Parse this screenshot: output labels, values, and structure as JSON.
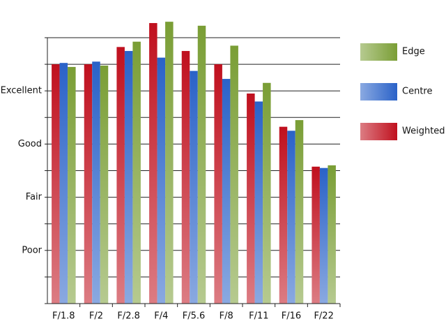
{
  "chart_data": {
    "type": "bar",
    "categories": [
      "F/1.8",
      "F/2",
      "F/2.8",
      "F/4",
      "F/5.6",
      "F/8",
      "F/11",
      "F/16",
      "F/22"
    ],
    "series": [
      {
        "name": "Weighted",
        "color": "#c0101e",
        "values": [
          9.0,
          9.0,
          9.65,
          10.55,
          9.5,
          9.0,
          7.9,
          6.65,
          5.15
        ]
      },
      {
        "name": "Centre",
        "color": "#2a62c8",
        "values": [
          9.05,
          9.1,
          9.5,
          9.25,
          8.75,
          8.45,
          7.6,
          6.5,
          5.1
        ]
      },
      {
        "name": "Edge",
        "color": "#7a9e35",
        "values": [
          8.9,
          8.95,
          9.85,
          10.6,
          10.45,
          9.7,
          8.3,
          6.9,
          5.2
        ]
      }
    ],
    "ylim": [
      0,
      10
    ],
    "yticks": [
      {
        "value": 2,
        "label": "Poor"
      },
      {
        "value": 4,
        "label": "Fair"
      },
      {
        "value": 6,
        "label": "Good"
      },
      {
        "value": 8,
        "label": "Excellent"
      }
    ],
    "ygrid": [
      0,
      1,
      2,
      3,
      4,
      5,
      6,
      7,
      8,
      9,
      10
    ],
    "legend": "right"
  }
}
